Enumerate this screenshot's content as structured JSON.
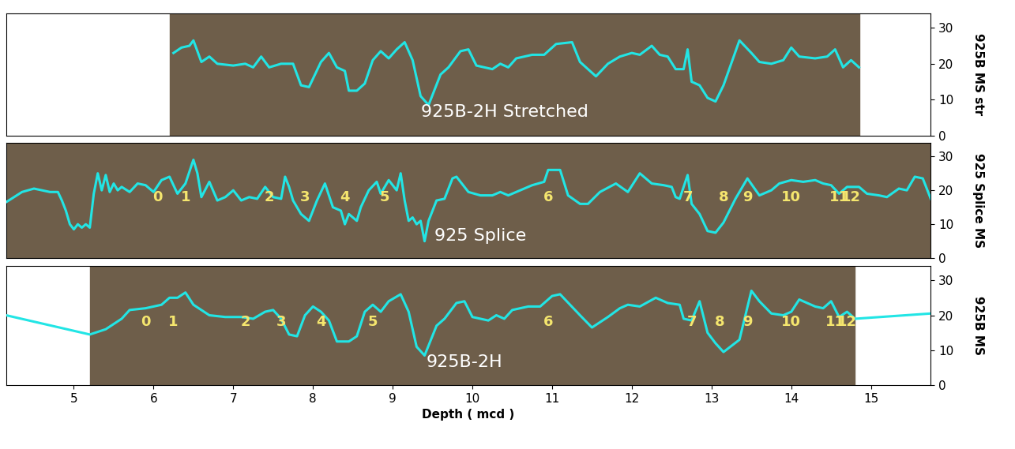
{
  "chart_data": [
    {
      "type": "line",
      "ylabel": "925B MS str",
      "color": "#22e5e5",
      "xlim": [
        4.15,
        15.75
      ],
      "xticks": [
        5,
        6,
        7,
        8,
        9,
        10,
        11,
        12,
        13,
        14,
        15
      ],
      "ylim": [
        0,
        34
      ],
      "yticks": [
        0,
        10,
        20,
        30
      ],
      "core_extent": [
        6.2,
        14.85
      ],
      "annotation": {
        "text": "925B-2H Stretched",
        "x": 10.4,
        "y": 6.5
      },
      "x": [
        6.25,
        6.35,
        6.45,
        6.5,
        6.6,
        6.7,
        6.8,
        7.0,
        7.15,
        7.25,
        7.35,
        7.45,
        7.6,
        7.75,
        7.85,
        7.95,
        8.1,
        8.2,
        8.3,
        8.4,
        8.45,
        8.55,
        8.65,
        8.75,
        8.85,
        8.95,
        9.05,
        9.15,
        9.25,
        9.35,
        9.45,
        9.6,
        9.7,
        9.85,
        9.95,
        10.05,
        10.25,
        10.35,
        10.45,
        10.55,
        10.75,
        10.9,
        11.05,
        11.25,
        11.35,
        11.55,
        11.7,
        11.85,
        12.0,
        12.1,
        12.25,
        12.35,
        12.45,
        12.55,
        12.65,
        12.7,
        12.75,
        12.85,
        12.95,
        13.05,
        13.15,
        13.35,
        13.5,
        13.6,
        13.75,
        13.9,
        14.0,
        14.1,
        14.3,
        14.45,
        14.55,
        14.65,
        14.75,
        14.85
      ],
      "values": [
        23,
        24.5,
        25,
        26.5,
        20.5,
        22,
        20,
        19.5,
        20,
        19,
        22,
        19,
        20,
        20,
        14,
        13.5,
        20.5,
        23,
        19,
        18,
        12.5,
        12.5,
        14.5,
        21,
        23.5,
        21.5,
        24,
        26,
        21,
        11,
        8.5,
        17,
        19,
        23.5,
        24,
        19.5,
        18.5,
        20,
        19,
        21.5,
        22.5,
        22.5,
        25.5,
        26,
        20.5,
        16.5,
        20,
        22,
        23,
        22.5,
        25,
        22.5,
        22,
        18.5,
        18.5,
        24,
        15,
        14,
        10.5,
        9.5,
        14,
        26.5,
        23,
        20.5,
        20,
        21,
        24.5,
        22,
        21.5,
        22,
        24,
        19,
        21,
        19
      ]
    },
    {
      "type": "line",
      "ylabel": "925 Splice MS",
      "color": "#22e5e5",
      "xlim": [
        4.15,
        15.75
      ],
      "xticks": [
        5,
        6,
        7,
        8,
        9,
        10,
        11,
        12,
        13,
        14,
        15
      ],
      "ylim": [
        0,
        34
      ],
      "yticks": [
        0,
        10,
        20,
        30
      ],
      "core_extent": [
        4.15,
        15.75
      ],
      "annotation": {
        "text": "925 Splice",
        "x": 10.1,
        "y": 6.5
      },
      "tie_points": {
        "labels": [
          "0",
          "1",
          "2",
          "3",
          "4",
          "5",
          "6",
          "7",
          "8",
          "9",
          "10",
          "11",
          "12"
        ],
        "x": [
          6.05,
          6.4,
          7.45,
          7.9,
          8.4,
          8.9,
          10.95,
          12.7,
          13.15,
          13.45,
          14.0,
          14.6,
          14.75
        ],
        "y": [
          18,
          18,
          18,
          18,
          18,
          18,
          18,
          18,
          18,
          18,
          18,
          18,
          18
        ]
      },
      "x": [
        4.15,
        4.35,
        4.5,
        4.6,
        4.7,
        4.8,
        4.85,
        4.9,
        4.95,
        5.0,
        5.05,
        5.1,
        5.15,
        5.2,
        5.25,
        5.3,
        5.35,
        5.4,
        5.45,
        5.5,
        5.55,
        5.6,
        5.7,
        5.8,
        5.9,
        6.0,
        6.1,
        6.2,
        6.3,
        6.4,
        6.5,
        6.55,
        6.6,
        6.7,
        6.8,
        6.9,
        7.0,
        7.1,
        7.2,
        7.3,
        7.4,
        7.5,
        7.6,
        7.65,
        7.7,
        7.75,
        7.85,
        7.95,
        8.05,
        8.1,
        8.15,
        8.25,
        8.35,
        8.4,
        8.45,
        8.55,
        8.6,
        8.7,
        8.8,
        8.85,
        8.95,
        9.05,
        9.1,
        9.15,
        9.2,
        9.25,
        9.3,
        9.35,
        9.4,
        9.45,
        9.55,
        9.65,
        9.75,
        9.8,
        9.95,
        10.1,
        10.25,
        10.35,
        10.45,
        10.6,
        10.75,
        10.9,
        10.95,
        11.0,
        11.1,
        11.2,
        11.35,
        11.45,
        11.6,
        11.8,
        11.95,
        12.1,
        12.25,
        12.4,
        12.5,
        12.55,
        12.6,
        12.65,
        12.7,
        12.75,
        12.85,
        12.95,
        13.05,
        13.15,
        13.3,
        13.45,
        13.6,
        13.75,
        13.85,
        14.0,
        14.15,
        14.3,
        14.4,
        14.5,
        14.6,
        14.7,
        14.85,
        14.95,
        15.1,
        15.2,
        15.35,
        15.45,
        15.55,
        15.65,
        15.75
      ],
      "values": [
        16.5,
        19.5,
        20.5,
        20,
        19.5,
        19.5,
        17,
        14,
        10,
        8.5,
        10,
        9,
        10,
        9,
        19,
        25,
        20,
        24.5,
        19.5,
        22,
        20,
        21,
        19.5,
        22,
        21.5,
        19.5,
        23,
        24,
        19,
        22,
        29,
        25,
        18,
        22.5,
        17,
        18,
        20,
        17,
        18,
        17.5,
        21,
        18,
        17.5,
        24,
        21,
        17,
        13,
        11,
        17,
        19.5,
        22,
        15,
        14,
        10,
        13,
        11,
        15,
        20,
        22.5,
        19,
        23,
        20,
        25,
        17,
        11,
        12,
        10,
        11,
        5,
        11,
        17,
        17.5,
        23.5,
        24,
        19.5,
        18.5,
        18.5,
        19.5,
        18.5,
        20,
        21.5,
        22.5,
        26,
        26,
        26,
        18.5,
        16,
        16,
        19.5,
        22,
        19.5,
        25,
        22,
        21.5,
        21,
        18,
        17.5,
        21,
        24.5,
        16,
        13,
        8,
        7.5,
        10.5,
        17.5,
        23.5,
        18.5,
        20,
        22,
        23,
        22.5,
        23,
        22,
        21.5,
        19,
        21,
        21,
        19,
        18.5,
        18,
        20.5,
        20,
        24,
        23.5,
        17.5
      ]
    },
    {
      "type": "line",
      "ylabel": "925B MS",
      "xlabel": "Depth ( mcd )",
      "color": "#22e5e5",
      "xlim": [
        4.15,
        15.75
      ],
      "xticks": [
        5,
        6,
        7,
        8,
        9,
        10,
        11,
        12,
        13,
        14,
        15
      ],
      "ylim": [
        0,
        34
      ],
      "yticks": [
        0,
        10,
        20,
        30
      ],
      "core_extent": [
        5.2,
        14.8
      ],
      "annotation": {
        "text": "925B-2H",
        "x": 9.9,
        "y": 6.5
      },
      "tie_points": {
        "labels": [
          "0",
          "1",
          "2",
          "3",
          "4",
          "5",
          "6",
          "7",
          "8",
          "9",
          "10",
          "11",
          "12"
        ],
        "x": [
          5.9,
          6.25,
          7.15,
          7.6,
          8.1,
          8.75,
          10.95,
          12.75,
          13.1,
          13.45,
          14.0,
          14.55,
          14.7
        ],
        "y": [
          18,
          18,
          18,
          18,
          18,
          18,
          18,
          18,
          18,
          18,
          18,
          18,
          18
        ]
      },
      "x": [
        4.15,
        5.2,
        5.4,
        5.6,
        5.7,
        5.9,
        6.1,
        6.2,
        6.3,
        6.4,
        6.5,
        6.7,
        6.9,
        7.1,
        7.25,
        7.4,
        7.5,
        7.6,
        7.7,
        7.8,
        7.9,
        8.0,
        8.1,
        8.2,
        8.3,
        8.45,
        8.55,
        8.65,
        8.75,
        8.85,
        8.95,
        9.1,
        9.2,
        9.3,
        9.4,
        9.55,
        9.65,
        9.8,
        9.9,
        10.0,
        10.2,
        10.3,
        10.4,
        10.5,
        10.7,
        10.85,
        11.0,
        11.1,
        11.35,
        11.5,
        11.7,
        11.85,
        11.95,
        12.1,
        12.3,
        12.45,
        12.6,
        12.65,
        12.75,
        12.85,
        12.95,
        13.05,
        13.15,
        13.35,
        13.5,
        13.6,
        13.75,
        13.9,
        14.0,
        14.1,
        14.3,
        14.4,
        14.5,
        14.6,
        14.7,
        14.8,
        15.75
      ],
      "values": [
        20,
        14.5,
        16,
        19,
        21.5,
        22,
        23,
        25,
        25,
        26.5,
        23,
        20,
        19.5,
        19.5,
        19,
        21,
        21.5,
        19,
        14.5,
        14,
        20,
        22.5,
        21,
        18.5,
        12.5,
        12.5,
        14,
        21,
        23,
        21,
        24,
        26,
        21,
        11,
        8.5,
        17,
        19,
        23.5,
        24,
        19.5,
        18.5,
        20,
        19,
        21.5,
        22.5,
        22.5,
        25.5,
        26,
        20,
        16.5,
        19.5,
        22,
        23,
        22.5,
        25,
        23.5,
        23,
        19,
        18.5,
        24,
        15,
        12,
        9.5,
        13,
        27,
        24,
        20.5,
        20,
        21,
        24.5,
        22.5,
        22,
        24,
        19.5,
        21,
        19,
        20.5
      ]
    }
  ]
}
